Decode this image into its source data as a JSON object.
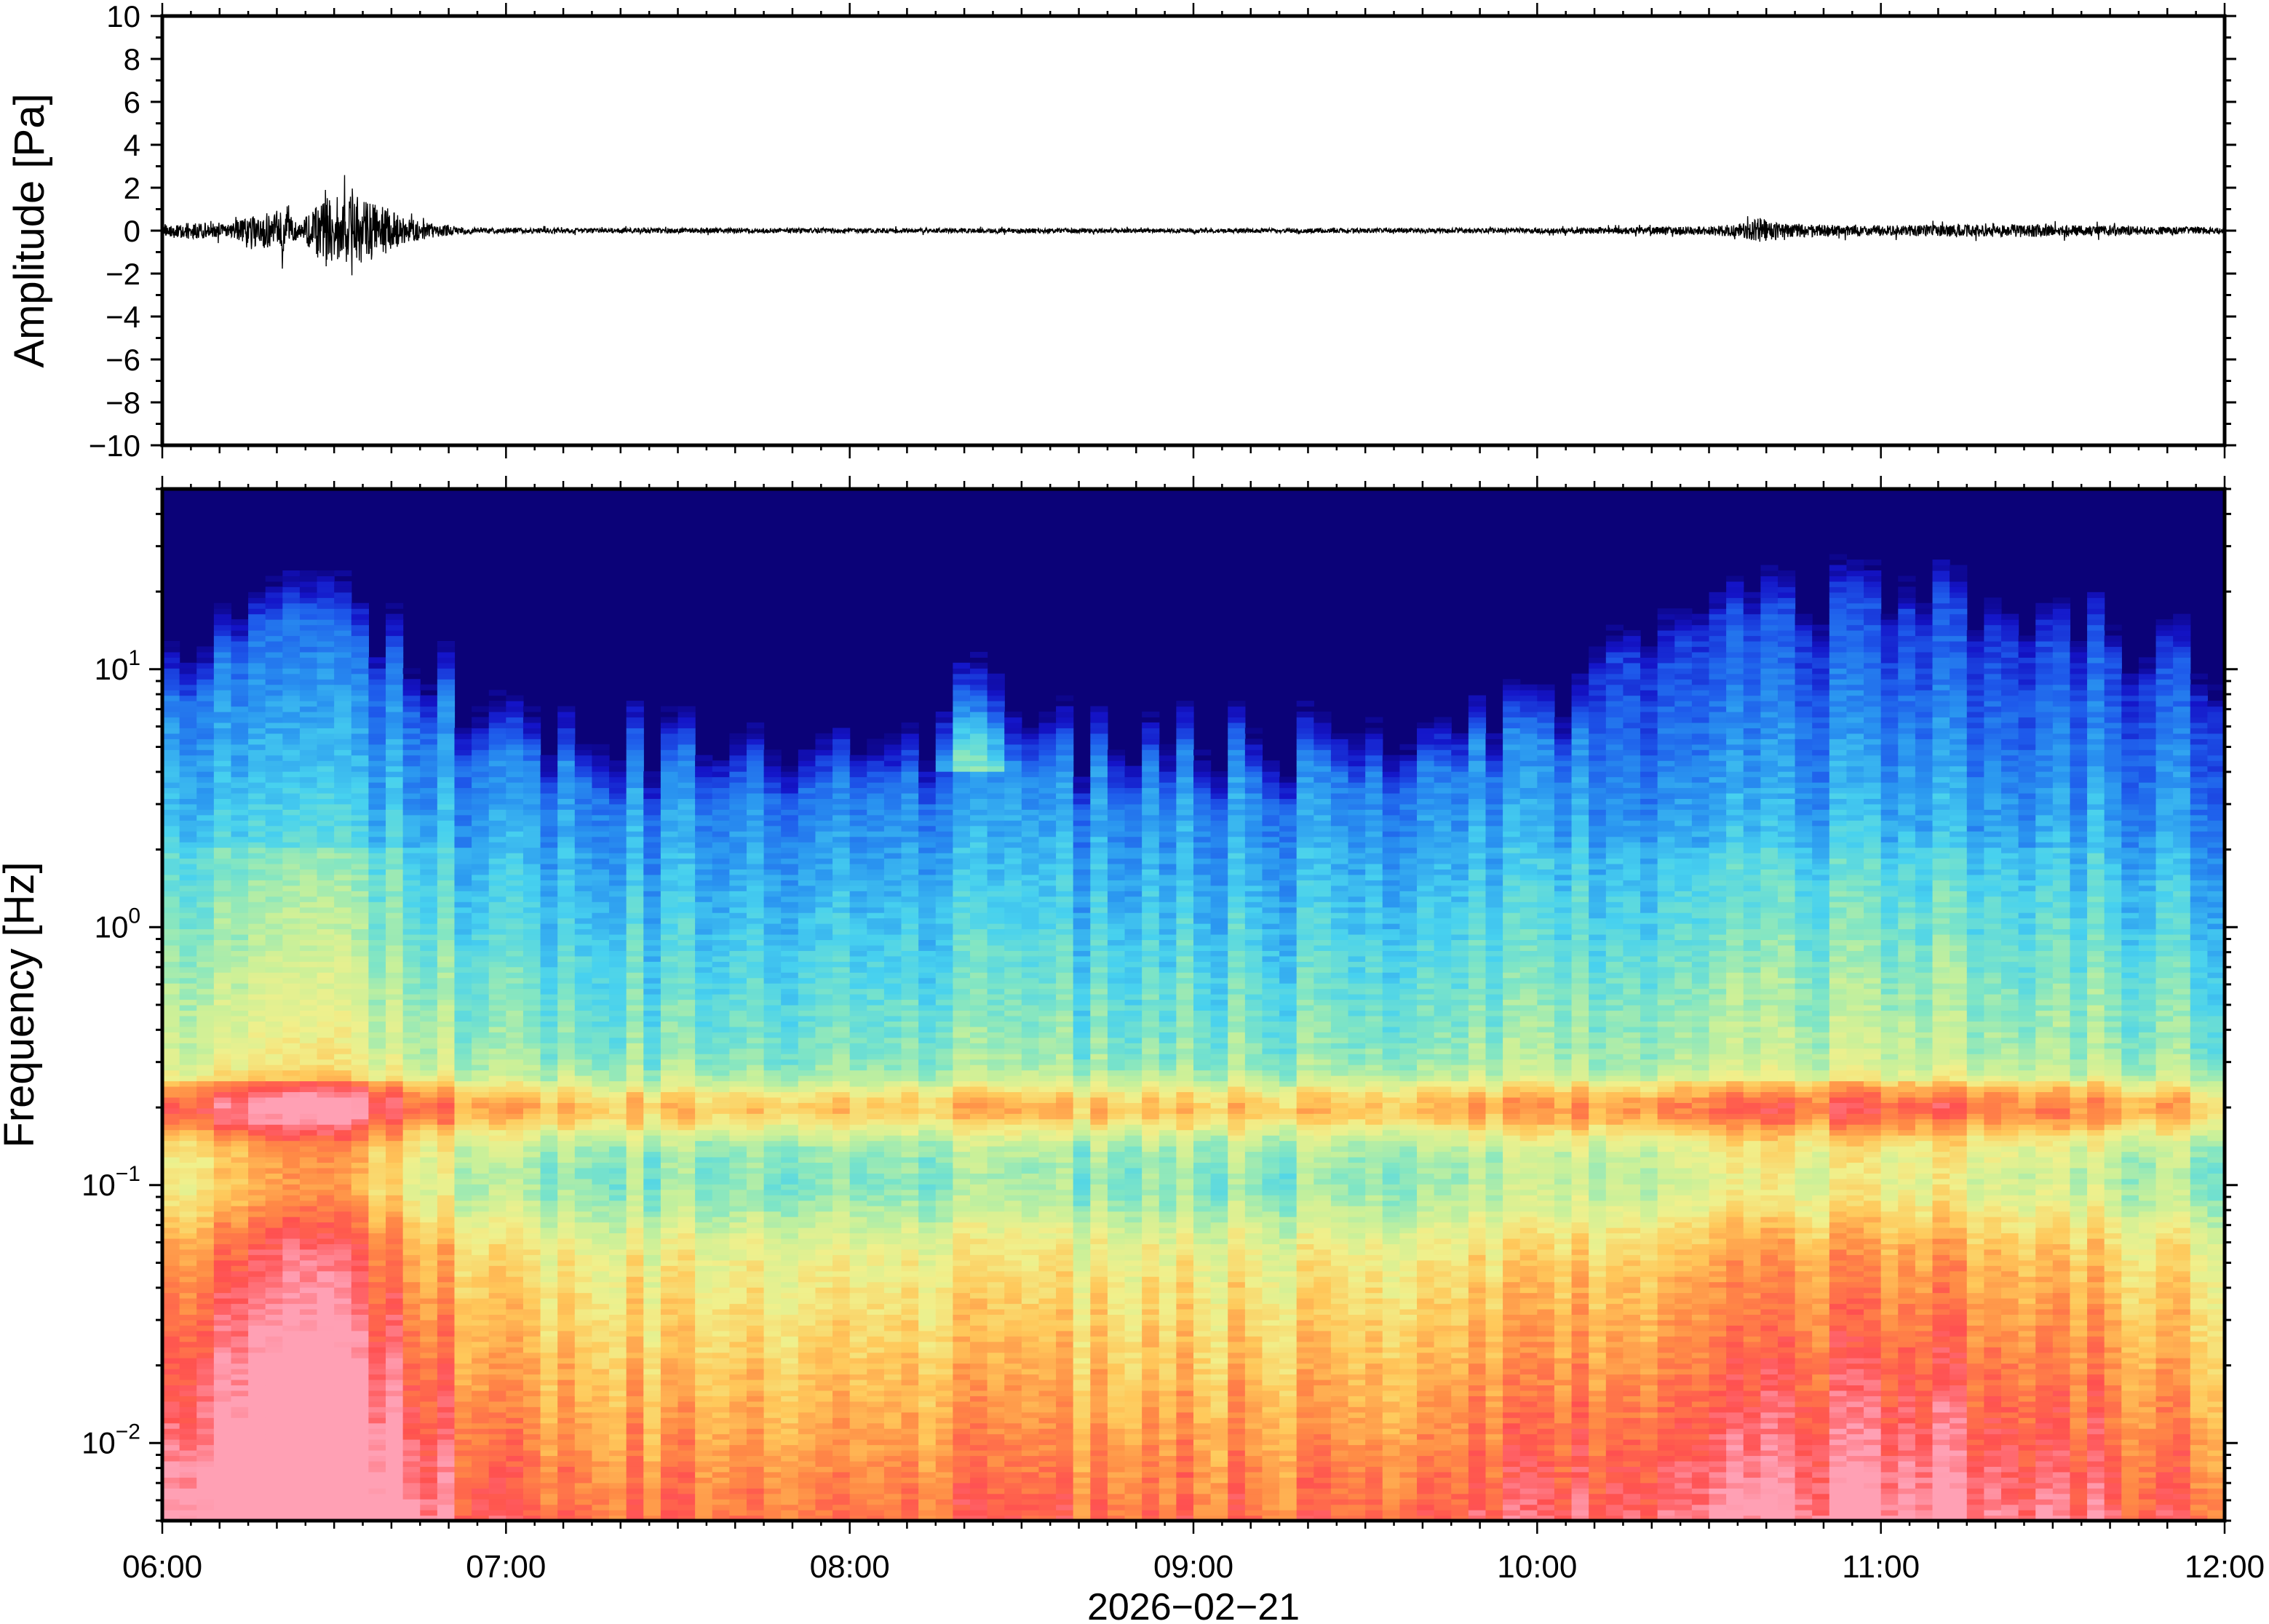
{
  "chart_data": [
    {
      "type": "line",
      "panel": "waveform",
      "title": "",
      "xlabel": "",
      "ylabel": "Amplitude [Pa]",
      "xlim": [
        "06:00",
        "12:00"
      ],
      "ylim": [
        -10,
        10
      ],
      "grid": false,
      "y_ticks": [
        {
          "value": 10,
          "label": "10"
        },
        {
          "value": 8,
          "label": "8"
        },
        {
          "value": 6,
          "label": "6"
        },
        {
          "value": 4,
          "label": "4"
        },
        {
          "value": 2,
          "label": "2"
        },
        {
          "value": 0,
          "label": "0"
        },
        {
          "value": -2,
          "label": "−2"
        },
        {
          "value": -4,
          "label": "−4"
        },
        {
          "value": -6,
          "label": "−6"
        },
        {
          "value": -8,
          "label": "−8"
        },
        {
          "value": -10,
          "label": "−10"
        }
      ],
      "series": [
        {
          "color": "#000000",
          "envelope_x_hours": [
            6.0,
            6.1,
            6.2,
            6.3,
            6.35,
            6.4,
            6.45,
            6.47,
            6.5,
            6.55,
            6.6,
            6.65,
            6.7,
            6.8,
            6.9,
            7.0,
            8.0,
            9.0,
            10.0,
            10.5,
            10.6,
            10.65,
            10.7,
            10.8,
            11.0,
            11.4,
            12.0
          ],
          "envelope_amplitude_pa": [
            0.3,
            0.4,
            0.3,
            0.9,
            1.0,
            0.3,
            1.2,
            2.1,
            1.3,
            1.6,
            1.4,
            1.1,
            0.6,
            0.3,
            0.15,
            0.12,
            0.12,
            0.1,
            0.12,
            0.2,
            0.35,
            0.6,
            0.35,
            0.3,
            0.25,
            0.3,
            0.15
          ]
        }
      ]
    },
    {
      "type": "heatmap",
      "panel": "spectrogram",
      "title": "",
      "xlabel": "2026−02−21",
      "ylabel": "Frequency [Hz]",
      "xlim": [
        "06:00",
        "12:00"
      ],
      "ylim": [
        0.005,
        50
      ],
      "y_scale": "log",
      "grid": false,
      "colormap": "rainbow (navy low → red/pink high)",
      "colormap_stops": [
        "#0b0278",
        "#1414c8",
        "#1e5aeb",
        "#2a96f0",
        "#47d1ef",
        "#7fe5c5",
        "#c7f09a",
        "#f0f08c",
        "#ffc85a",
        "#ff8c46",
        "#ff5050",
        "#ffa0b4"
      ],
      "y_ticks": [
        {
          "value": 10,
          "base": "10",
          "exp": "1"
        },
        {
          "value": 1,
          "base": "10",
          "exp": "0"
        },
        {
          "value": 0.1,
          "base": "10",
          "exp": "−1"
        },
        {
          "value": 0.01,
          "base": "10",
          "exp": "−2"
        }
      ],
      "x_ticks": [
        {
          "value": 6,
          "label": "06:00"
        },
        {
          "value": 7,
          "label": "07:00"
        },
        {
          "value": 8,
          "label": "08:00"
        },
        {
          "value": 9,
          "label": "09:00"
        },
        {
          "value": 10,
          "label": "10:00"
        },
        {
          "value": 11,
          "label": "11:00"
        },
        {
          "value": 12,
          "label": "12:00"
        }
      ],
      "features": {
        "microseism_band_hz": 0.2,
        "high_energy_lowfreq_window": [
          "06:00",
          "06:50"
        ],
        "high_freq_spike_time": "08:20",
        "moderate_energy_window": [
          "10:10",
          "11:50"
        ]
      }
    }
  ]
}
